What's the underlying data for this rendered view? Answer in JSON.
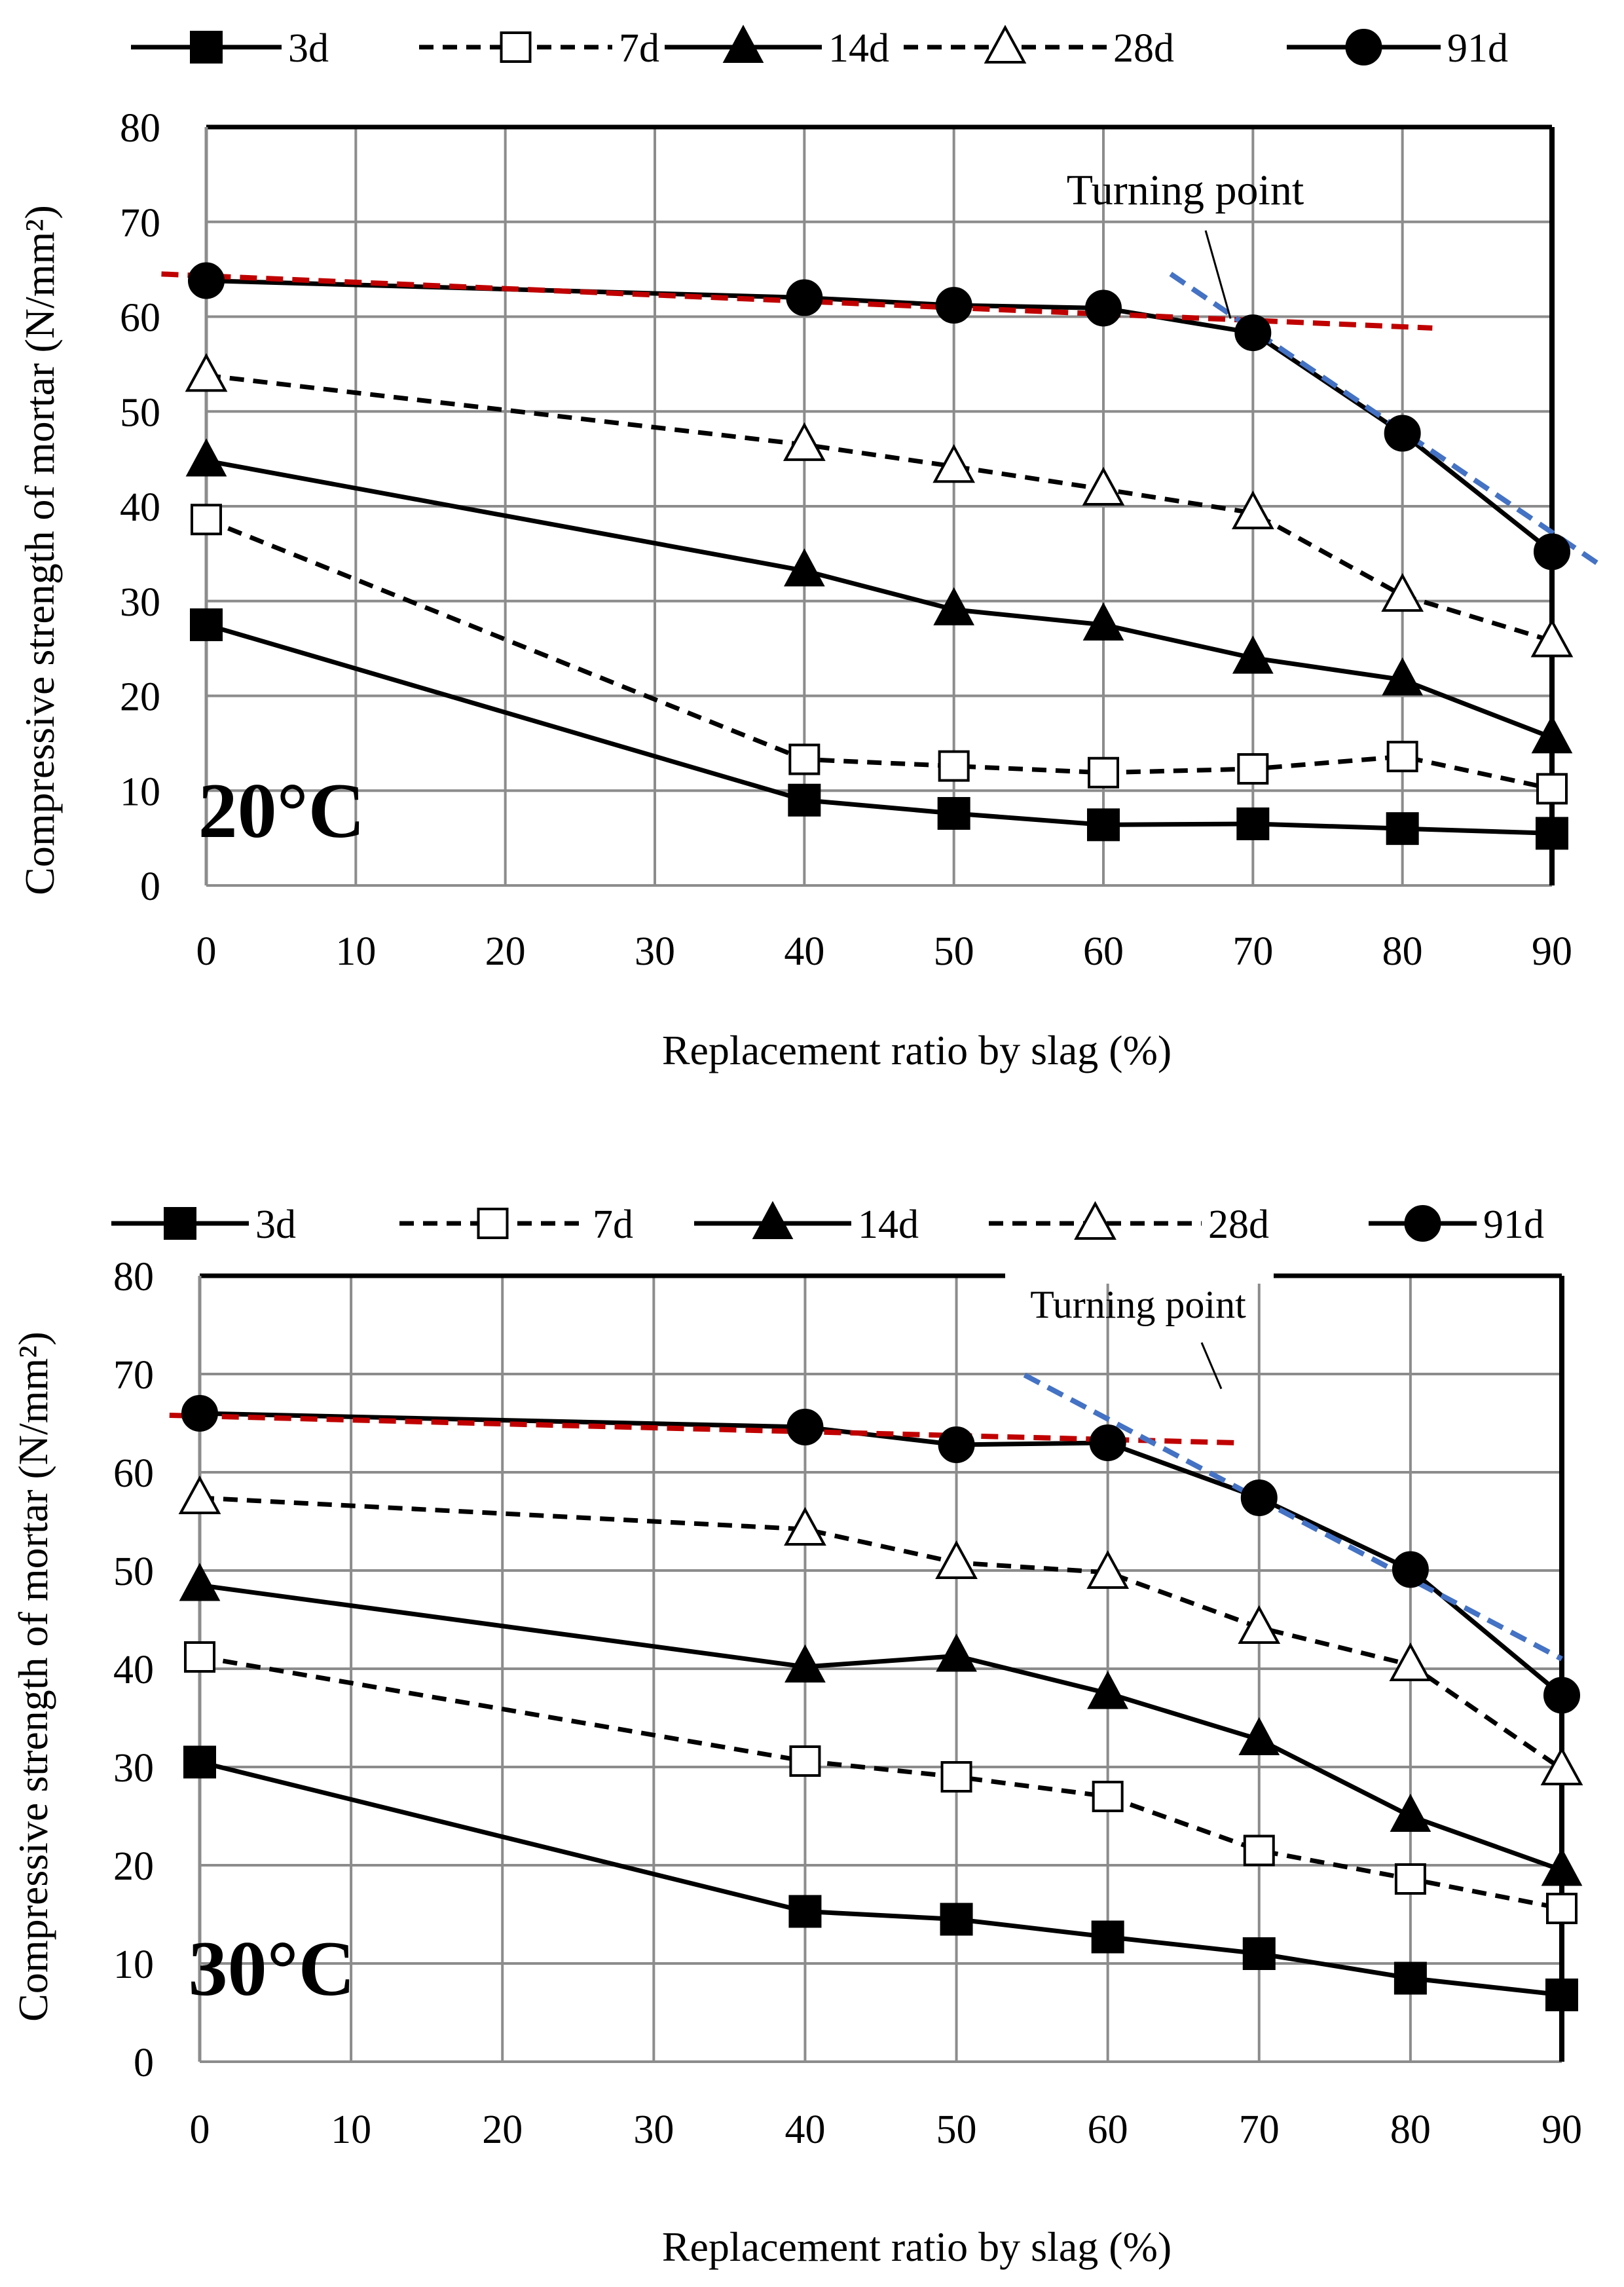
{
  "chart_data": [
    {
      "type": "line",
      "panel": "top",
      "temperature_label": "20°C",
      "xlabel": "Replacement ratio by slag (%)",
      "ylabel": "Compressive strength of mortar (N/mm²)",
      "xlim": [
        0,
        90
      ],
      "ylim": [
        0,
        80
      ],
      "x_ticks": [
        "0",
        "10",
        "20",
        "30",
        "40",
        "50",
        "60",
        "70",
        "80",
        "90"
      ],
      "y_ticks": [
        "0",
        "10",
        "20",
        "30",
        "40",
        "50",
        "60",
        "70",
        "80"
      ],
      "grid": true,
      "legend_position": "top",
      "x": [
        0,
        40,
        50,
        60,
        70,
        80,
        90
      ],
      "series": [
        {
          "name": "3d",
          "marker": "square-filled",
          "dash": "solid",
          "values": [
            27.5,
            9,
            7.6,
            6.4,
            6.5,
            6.0,
            5.5
          ]
        },
        {
          "name": "7d",
          "marker": "square-open",
          "dash": "dashed",
          "values": [
            38.6,
            13.3,
            12.6,
            11.9,
            12.3,
            13.6,
            10.2
          ]
        },
        {
          "name": "14d",
          "marker": "triangle-filled",
          "dash": "solid",
          "values": [
            44.8,
            33.2,
            29.1,
            27.5,
            24.0,
            21.7,
            15.6
          ]
        },
        {
          "name": "28d",
          "marker": "triangle-open",
          "dash": "dashed",
          "values": [
            53.8,
            46.5,
            44.2,
            41.8,
            39.3,
            30.6,
            25.8
          ]
        },
        {
          "name": "91d",
          "marker": "circle-filled",
          "dash": "solid",
          "values": [
            63.8,
            62.0,
            61.2,
            60.9,
            58.3,
            47.7,
            35.2
          ]
        }
      ],
      "trend_lines": [
        {
          "color": "#c00000",
          "from": [
            -3,
            64.5
          ],
          "to": [
            82,
            58.8
          ]
        },
        {
          "color": "#4472c4",
          "from": [
            64.5,
            64.5
          ],
          "to": [
            93.5,
            33.5
          ]
        }
      ],
      "annotation": {
        "text": "Turning point",
        "target": [
          68.5,
          59.8
        ]
      }
    },
    {
      "type": "line",
      "panel": "bottom",
      "temperature_label": "30°C",
      "xlabel": "Replacement ratio by slag (%)",
      "ylabel": "Compressive strength of mortar (N/mm²)",
      "xlim": [
        0,
        90
      ],
      "ylim": [
        0,
        80
      ],
      "x_ticks": [
        "0",
        "10",
        "20",
        "30",
        "40",
        "50",
        "60",
        "70",
        "80",
        "90"
      ],
      "y_ticks": [
        "0",
        "10",
        "20",
        "30",
        "40",
        "50",
        "60",
        "70",
        "80"
      ],
      "grid": true,
      "legend_position": "top",
      "x": [
        0,
        40,
        50,
        60,
        70,
        80,
        90
      ],
      "series": [
        {
          "name": "3d",
          "marker": "square-filled",
          "dash": "solid",
          "values": [
            30.5,
            15.3,
            14.5,
            12.7,
            11.0,
            8.5,
            6.8
          ]
        },
        {
          "name": "7d",
          "marker": "square-open",
          "dash": "dashed",
          "values": [
            41.2,
            30.6,
            29.0,
            27.0,
            21.5,
            18.6,
            15.6
          ]
        },
        {
          "name": "14d",
          "marker": "triangle-filled",
          "dash": "solid",
          "values": [
            48.5,
            40.2,
            41.3,
            37.5,
            32.8,
            25.0,
            19.5
          ]
        },
        {
          "name": "28d",
          "marker": "triangle-open",
          "dash": "dashed",
          "values": [
            57.4,
            54.2,
            50.8,
            49.8,
            44.2,
            40.4,
            29.8
          ]
        },
        {
          "name": "91d",
          "marker": "circle-filled",
          "dash": "solid",
          "values": [
            66.0,
            64.6,
            62.8,
            63.0,
            57.4,
            50.1,
            37.3
          ]
        }
      ],
      "trend_lines": [
        {
          "color": "#c00000",
          "from": [
            -2,
            65.8
          ],
          "to": [
            68.5,
            63.0
          ]
        },
        {
          "color": "#4472c4",
          "from": [
            54.5,
            69.9
          ],
          "to": [
            90,
            41.0
          ]
        }
      ],
      "annotation": {
        "text": "Turning point",
        "target": [
          67.5,
          68.5
        ]
      }
    }
  ]
}
